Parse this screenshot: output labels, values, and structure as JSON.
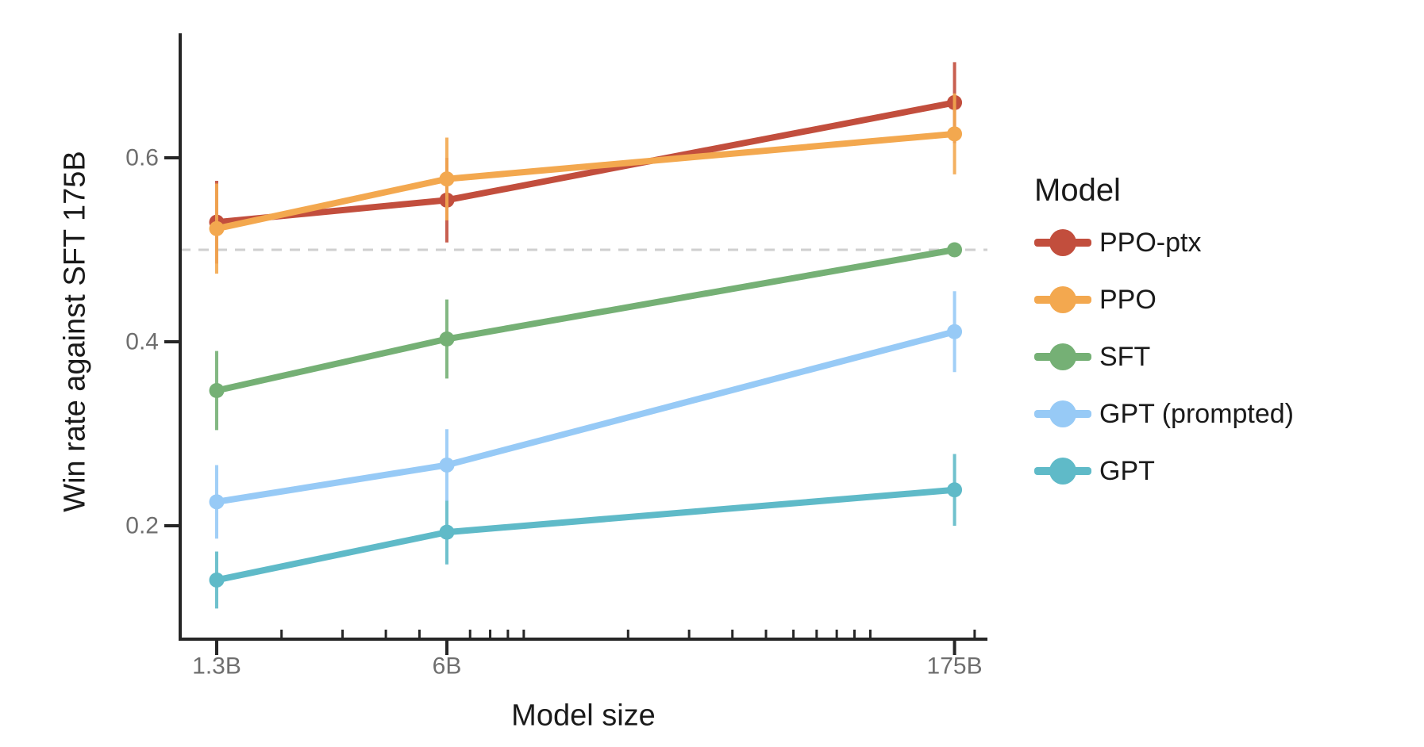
{
  "figure": {
    "background": "#ffffff",
    "axis_color": "#262626",
    "tick_label_color": "#6e6e6e",
    "text_color": "#1a1a1a",
    "reference_line_color": "#cfcfcf"
  },
  "chart_data": {
    "type": "line",
    "title": "",
    "xlabel": "Model size",
    "ylabel": "Win rate against SFT 175B",
    "legend_title": "Model",
    "legend_position": "right",
    "grid": false,
    "x_scale": "log",
    "x": [
      1.3,
      6,
      175
    ],
    "x_tick_labels": [
      "1.3B",
      "6B",
      "175B"
    ],
    "x_minor_ticks": [
      2,
      3,
      4,
      5,
      7,
      8,
      9,
      10,
      20,
      30,
      40,
      50,
      60,
      70,
      80,
      90,
      100,
      200
    ],
    "y_ticks": [
      0.2,
      0.4,
      0.6
    ],
    "y_tick_labels": [
      "0.2",
      "0.4",
      "0.6"
    ],
    "ylim": [
      0.08,
      0.73
    ],
    "reference_line_y": 0.5,
    "series": [
      {
        "name": "PPO-ptx",
        "color": "#C24E3D",
        "values": [
          0.53,
          0.554,
          0.66
        ],
        "errors": [
          0.045,
          0.046,
          0.044
        ]
      },
      {
        "name": "PPO",
        "color": "#F3A84F",
        "values": [
          0.523,
          0.577,
          0.626
        ],
        "errors": [
          0.049,
          0.045,
          0.044
        ]
      },
      {
        "name": "SFT",
        "color": "#75B075",
        "values": [
          0.347,
          0.403,
          0.5
        ],
        "errors": [
          0.043,
          0.043,
          0
        ]
      },
      {
        "name": "GPT (prompted)",
        "color": "#97CAF6",
        "values": [
          0.226,
          0.266,
          0.411
        ],
        "errors": [
          0.04,
          0.039,
          0.044
        ]
      },
      {
        "name": "GPT",
        "color": "#5FBAC8",
        "values": [
          0.141,
          0.193,
          0.239
        ],
        "errors": [
          0.031,
          0.035,
          0.039
        ]
      }
    ]
  }
}
